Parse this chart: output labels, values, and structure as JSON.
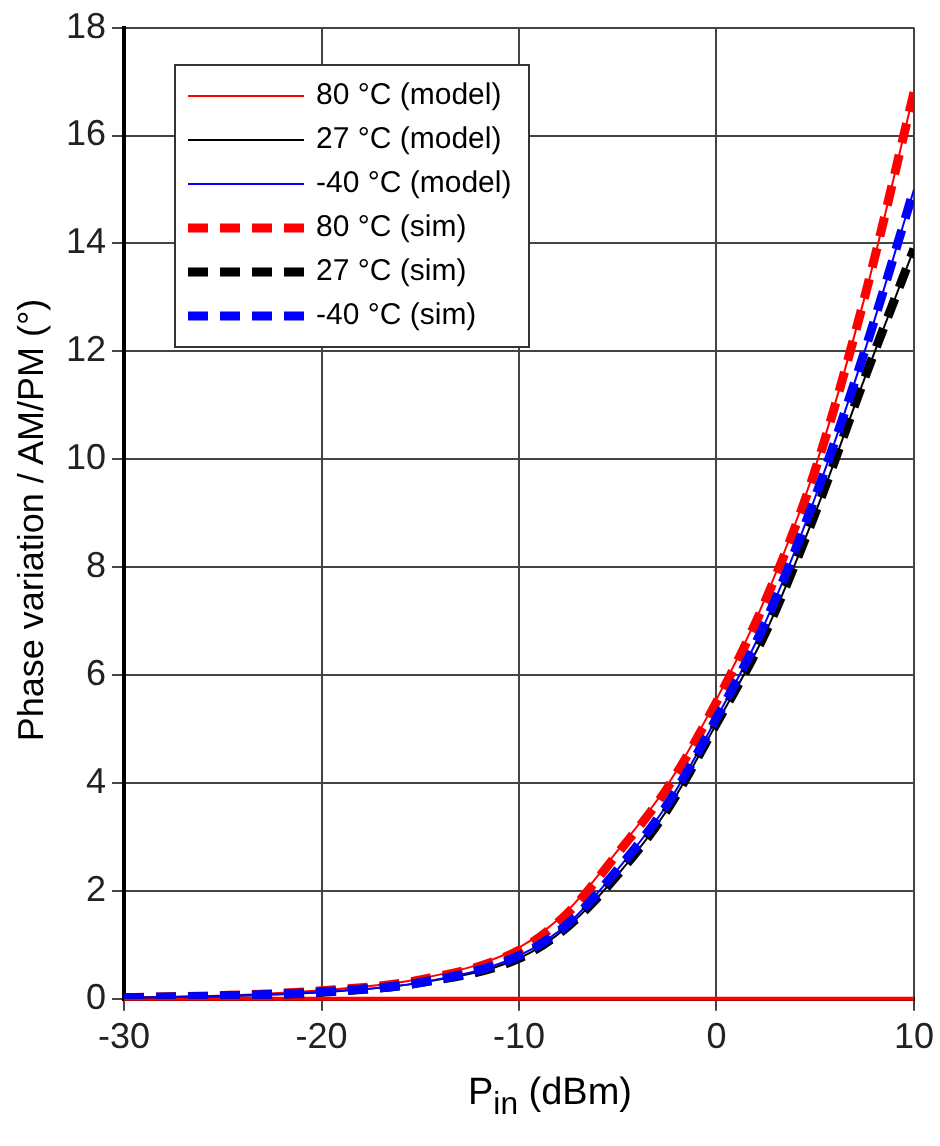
{
  "chart_data": {
    "type": "line",
    "xlabel": "P$_{in}$ (dBm)",
    "ylabel": "Phase variation / AM/PM (°)",
    "x": [
      -30,
      -25,
      -20,
      -15,
      -10,
      -7.5,
      -5,
      -2.5,
      0,
      2.5,
      5,
      7.5,
      10
    ],
    "series": [
      {
        "name": "80 °C (model)",
        "color": "#ff0000",
        "line_style": "solid",
        "values": [
          0.02,
          0.06,
          0.16,
          0.37,
          0.95,
          1.65,
          2.75,
          3.95,
          5.55,
          7.45,
          9.85,
          13.0,
          16.8
        ]
      },
      {
        "name": "27 °C (model)",
        "color": "#000000",
        "line_style": "solid",
        "values": [
          0.02,
          0.05,
          0.12,
          0.3,
          0.75,
          1.35,
          2.3,
          3.5,
          5.1,
          6.8,
          9.0,
          11.5,
          13.9
        ]
      },
      {
        "name": "-40 °C (model)",
        "color": "#0000ff",
        "line_style": "solid",
        "values": [
          0.02,
          0.05,
          0.13,
          0.3,
          0.8,
          1.4,
          2.4,
          3.6,
          5.2,
          7.0,
          9.3,
          12.0,
          15.0
        ]
      },
      {
        "name": "80 °C (sim)",
        "color": "#ff0000",
        "line_style": "dashed",
        "values": [
          0.02,
          0.06,
          0.15,
          0.35,
          0.9,
          1.6,
          2.7,
          3.9,
          5.5,
          7.4,
          9.8,
          13.0,
          16.8
        ]
      },
      {
        "name": "27 °C (sim)",
        "color": "#000000",
        "line_style": "dashed",
        "values": [
          0.02,
          0.05,
          0.12,
          0.3,
          0.75,
          1.35,
          2.3,
          3.5,
          5.1,
          6.8,
          9.0,
          11.5,
          13.9
        ]
      },
      {
        "name": "-40 °C (sim)",
        "color": "#0000ff",
        "line_style": "dashed",
        "values": [
          0.02,
          0.05,
          0.13,
          0.3,
          0.8,
          1.4,
          2.4,
          3.6,
          5.2,
          7.0,
          9.3,
          12.0,
          15.0
        ]
      }
    ],
    "xlim": [
      -30,
      10
    ],
    "xticks": [
      -30,
      -20,
      -10,
      0,
      10
    ],
    "ylim": [
      0,
      18
    ],
    "yticks": [
      0,
      2,
      4,
      6,
      8,
      10,
      12,
      14,
      16,
      18
    ],
    "ref_lines": [
      {
        "axis": "y",
        "value": 0,
        "color": "#ff0000"
      }
    ],
    "grid": true,
    "legend": "top left",
    "marker": "none"
  }
}
